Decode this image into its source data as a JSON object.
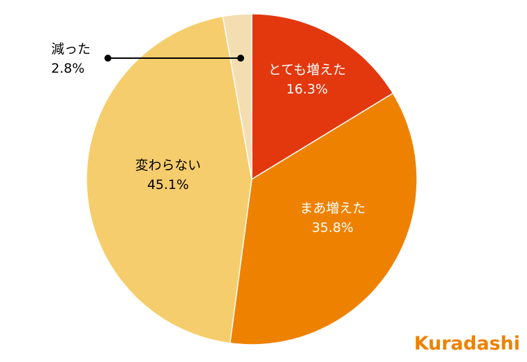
{
  "chart_data": {
    "type": "pie",
    "title": "",
    "slices": [
      {
        "label": "とても増えた",
        "value": 16.3,
        "value_text": "16.3%",
        "color": "#e3380e",
        "text_color": "#ffffff"
      },
      {
        "label": "まあ増えた",
        "value": 35.8,
        "value_text": "35.8%",
        "color": "#ee8200",
        "text_color": "#ffffff"
      },
      {
        "label": "変わらない",
        "value": 45.1,
        "value_text": "45.1%",
        "color": "#f6cd6c",
        "text_color": "#000000"
      },
      {
        "label": "減った",
        "value": 2.8,
        "value_text": "2.8%",
        "color": "#f4ddb1",
        "text_color": "#000000"
      }
    ],
    "start_angle": "12 o'clock",
    "direction": "clockwise",
    "legend": "none"
  },
  "logo": {
    "text": "Kuradashi",
    "color": "#ee8200"
  }
}
